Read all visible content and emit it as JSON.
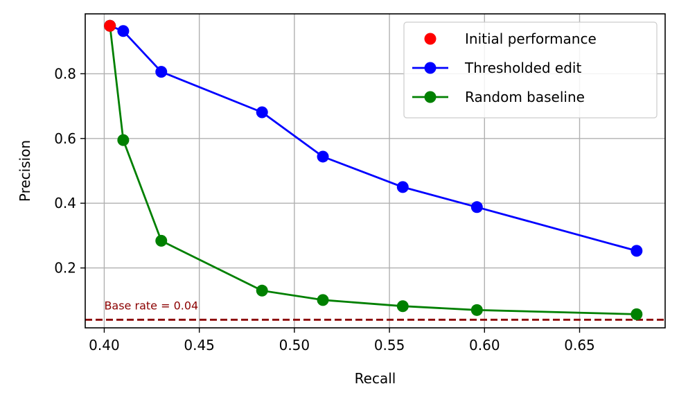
{
  "chart_data": {
    "type": "line",
    "xlabel": "Recall",
    "ylabel": "Precision",
    "xlim": [
      0.39,
      0.695
    ],
    "ylim": [
      0.015,
      0.985
    ],
    "x_ticks": [
      0.4,
      0.45,
      0.5,
      0.55,
      0.6,
      0.65
    ],
    "x_tick_labels": [
      "0.40",
      "0.45",
      "0.50",
      "0.55",
      "0.60",
      "0.65"
    ],
    "y_ticks": [
      0.2,
      0.4,
      0.6,
      0.8
    ],
    "y_tick_labels": [
      "0.2",
      "0.4",
      "0.6",
      "0.8"
    ],
    "grid": true,
    "legend_position": "top-right",
    "series": [
      {
        "name": "Initial performance",
        "color": "#ff0000",
        "style": "marker",
        "points": [
          [
            0.403,
            0.948
          ]
        ]
      },
      {
        "name": "Thresholded edit",
        "color": "#0000ff",
        "style": "line-marker",
        "points": [
          [
            0.403,
            0.948
          ],
          [
            0.41,
            0.932
          ],
          [
            0.43,
            0.806
          ],
          [
            0.483,
            0.681
          ],
          [
            0.515,
            0.544
          ],
          [
            0.557,
            0.45
          ],
          [
            0.596,
            0.388
          ],
          [
            0.68,
            0.253
          ]
        ]
      },
      {
        "name": "Random baseline",
        "color": "#008000",
        "style": "line-marker",
        "points": [
          [
            0.403,
            0.948
          ],
          [
            0.41,
            0.595
          ],
          [
            0.43,
            0.284
          ],
          [
            0.483,
            0.13
          ],
          [
            0.515,
            0.101
          ],
          [
            0.557,
            0.082
          ],
          [
            0.596,
            0.07
          ],
          [
            0.68,
            0.057
          ]
        ]
      }
    ],
    "reference_line": {
      "y": 0.04,
      "color": "#8b0000",
      "style": "dashed",
      "label": "Base rate = 0.04"
    }
  }
}
